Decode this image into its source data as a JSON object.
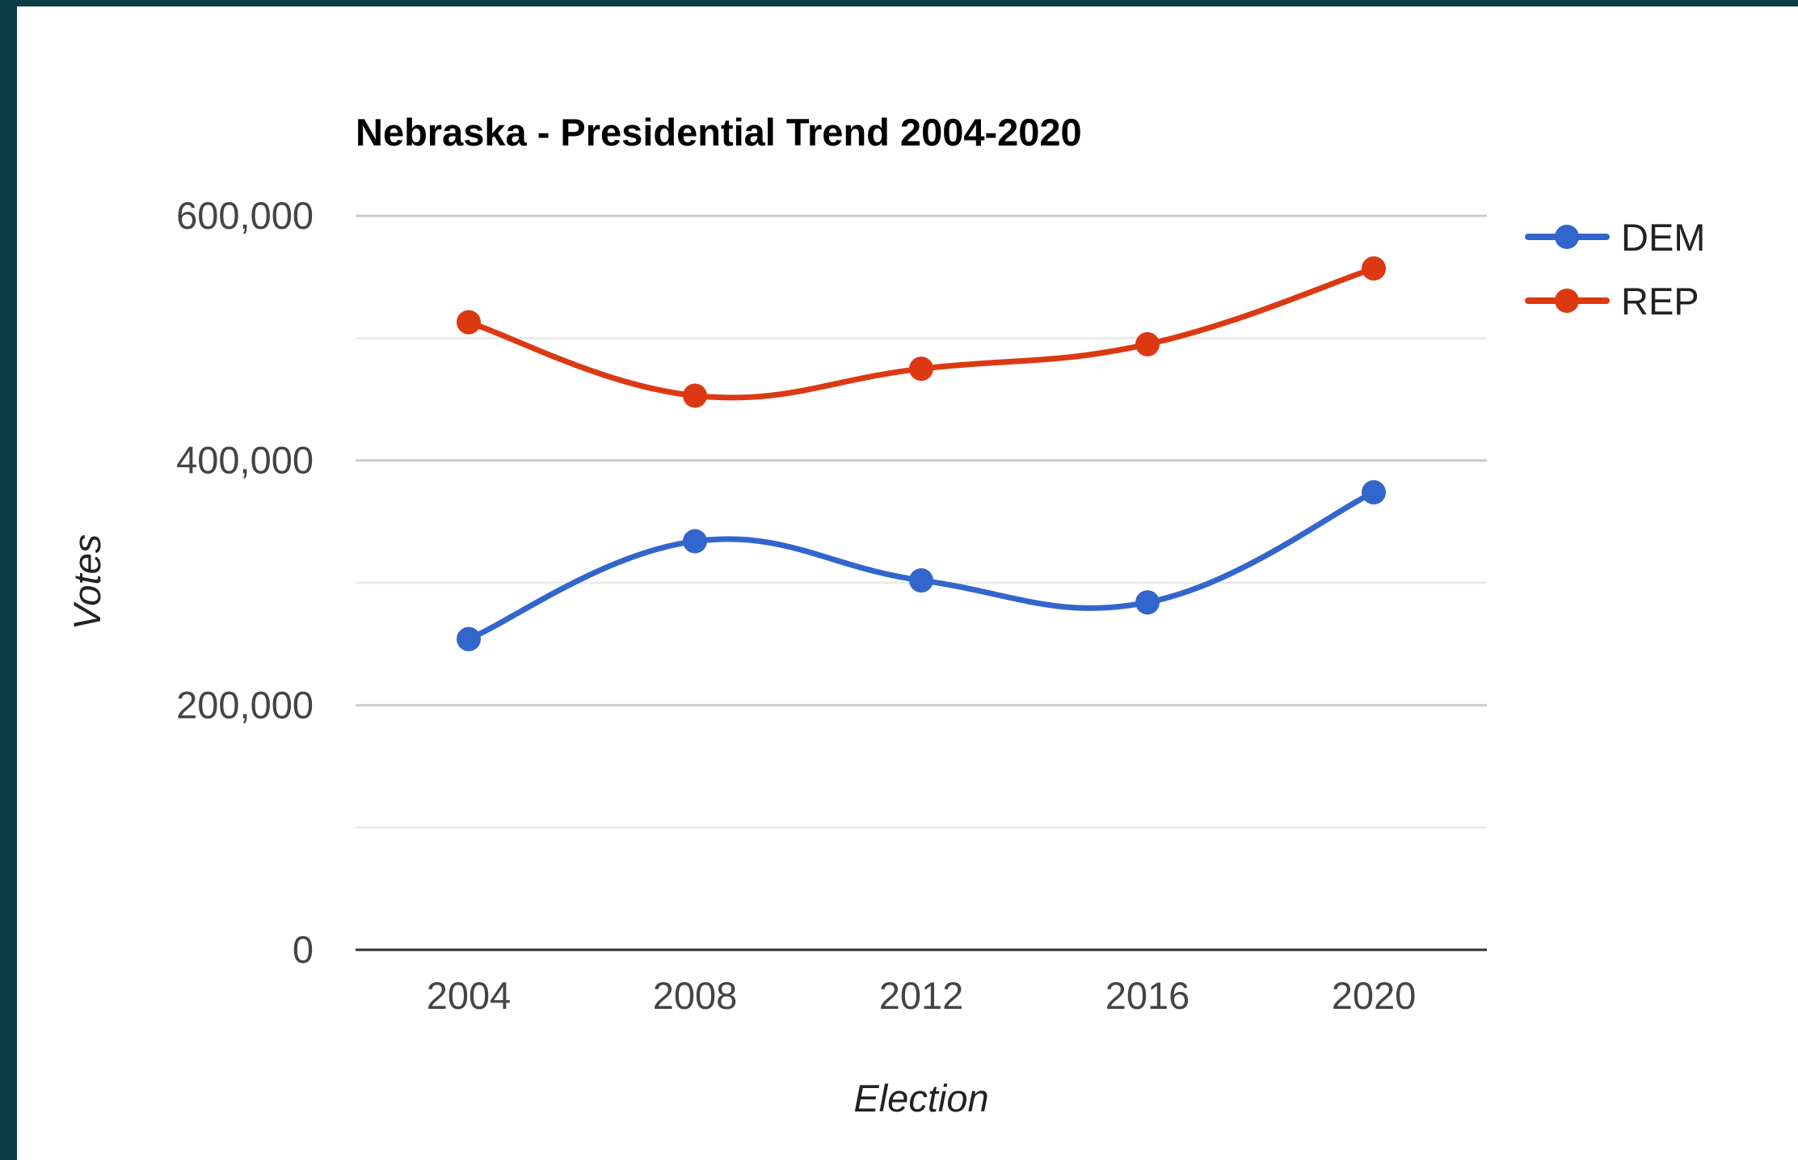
{
  "chart_data": {
    "type": "line",
    "title": "Nebraska - Presidential Trend 2004-2020",
    "xlabel": "Election",
    "ylabel": "Votes",
    "categories": [
      "2004",
      "2008",
      "2012",
      "2016",
      "2020"
    ],
    "ylim": [
      0,
      600000
    ],
    "yticks": [
      {
        "value": 0,
        "label": "0"
      },
      {
        "value": 200000,
        "label": "200,000"
      },
      {
        "value": 400000,
        "label": "400,000"
      },
      {
        "value": 600000,
        "label": "600,000"
      }
    ],
    "gridlines": [
      0,
      100000,
      200000,
      300000,
      400000,
      500000,
      600000
    ],
    "grid": true,
    "smooth": true,
    "legend_position": "right",
    "series": [
      {
        "name": "DEM",
        "color": "#3366cc",
        "values": [
          254000,
          334000,
          302000,
          284000,
          374000
        ]
      },
      {
        "name": "REP",
        "color": "#dc3912",
        "values": [
          513000,
          453000,
          475000,
          495000,
          557000
        ]
      }
    ]
  }
}
